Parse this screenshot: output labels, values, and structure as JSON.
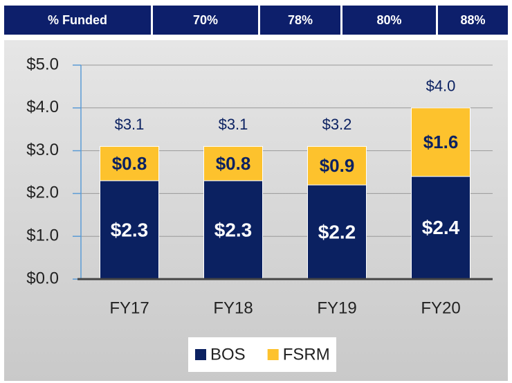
{
  "header": {
    "cells": [
      "% Funded",
      "70%",
      "78%",
      "80%",
      "88%"
    ]
  },
  "chart_data": {
    "type": "stacked_bar",
    "categories": [
      "FY17",
      "FY18",
      "FY19",
      "FY20"
    ],
    "series": [
      {
        "name": "BOS",
        "color": "#0b2161",
        "values": [
          2.3,
          2.3,
          2.2,
          2.4
        ],
        "value_labels": [
          "$2.3",
          "$2.3",
          "$2.2",
          "$2.4"
        ]
      },
      {
        "name": "FSRM",
        "color": "#fdc22d",
        "values": [
          0.8,
          0.8,
          0.9,
          1.6
        ],
        "value_labels": [
          "$0.8",
          "$0.8",
          "$0.9",
          "$1.6"
        ]
      }
    ],
    "totals": {
      "values": [
        3.1,
        3.1,
        3.2,
        4.0
      ],
      "value_labels": [
        "$3.1",
        "$3.1",
        "$3.2",
        "$4.0"
      ]
    },
    "ylim": [
      0,
      5
    ],
    "yticks": [
      {
        "value": 0,
        "label": "$0.0"
      },
      {
        "value": 1,
        "label": "$1.0"
      },
      {
        "value": 2,
        "label": "$2.0"
      },
      {
        "value": 3,
        "label": "$3.0"
      },
      {
        "value": 4,
        "label": "$4.0"
      },
      {
        "value": 5,
        "label": "$5.0"
      }
    ],
    "grid": true,
    "legend": "bottom"
  }
}
